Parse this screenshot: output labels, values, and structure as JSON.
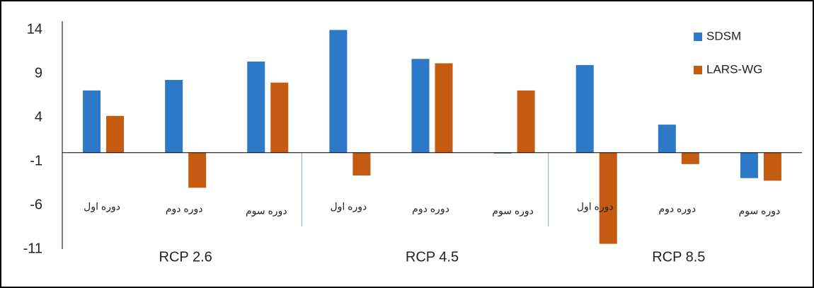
{
  "chart_data": {
    "type": "bar",
    "categories": [
      "دوره اول",
      "دوره دوم",
      "دوره سوم",
      "دوره اول",
      "دوره دوم",
      "دوره سوم",
      "دوره اول",
      "دوره دوم",
      "دوره سوم"
    ],
    "groups": [
      "RCP 2.6",
      "RCP 4.5",
      "RCP 8.5"
    ],
    "series": [
      {
        "name": "SDSM",
        "color": "#2e78c8",
        "values": [
          7.1,
          8.3,
          10.4,
          14.0,
          10.7,
          -0.1,
          10.0,
          3.2,
          -2.9
        ]
      },
      {
        "name": "LARS-WG",
        "color": "#c55a11",
        "values": [
          4.2,
          -4.0,
          8.0,
          -2.6,
          10.2,
          7.1,
          -10.4,
          -1.3,
          -3.2
        ]
      }
    ],
    "ylim": [
      -11,
      15
    ],
    "yticks": [
      14,
      9,
      4,
      -1,
      -6,
      -11
    ],
    "grid": false,
    "legend": "top-right"
  }
}
